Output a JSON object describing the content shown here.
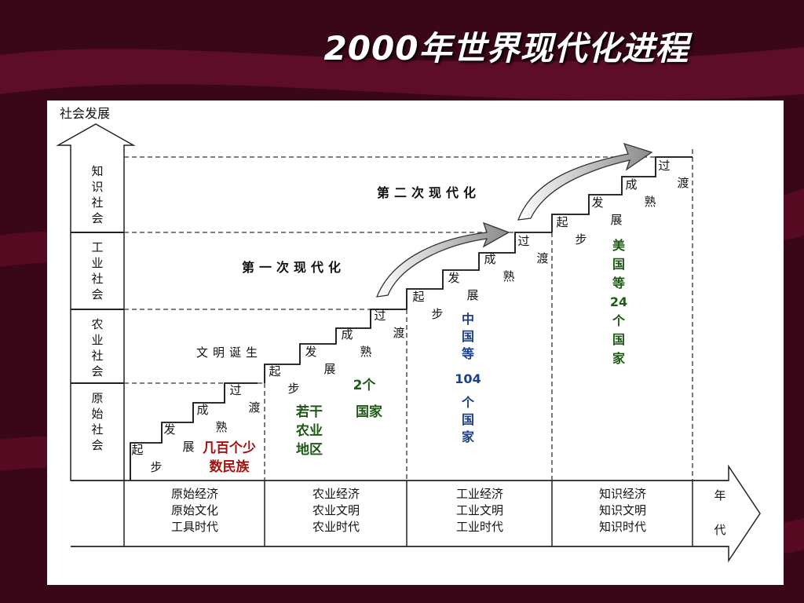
{
  "slide_title": "2000年世界现代化进程",
  "diagram": {
    "y_axis_label": "社会发展",
    "x_axis_label": [
      "年",
      "代"
    ],
    "levels": [
      {
        "id": "knowledge",
        "label": [
          "知",
          "识",
          "社",
          "会"
        ]
      },
      {
        "id": "industrial",
        "label": [
          "工",
          "业",
          "社",
          "会"
        ]
      },
      {
        "id": "agricultural",
        "label": [
          "农",
          "业",
          "社",
          "会"
        ]
      },
      {
        "id": "primitive",
        "label": [
          "原",
          "始",
          "社",
          "会"
        ]
      }
    ],
    "eras": [
      {
        "id": "primitive",
        "lines": [
          "原始经济",
          "原始文化",
          "工具时代"
        ]
      },
      {
        "id": "agricultural",
        "lines": [
          "农业经济",
          "农业文明",
          "农业时代"
        ]
      },
      {
        "id": "industrial",
        "lines": [
          "工业经济",
          "工业文明",
          "工业时代"
        ]
      },
      {
        "id": "knowledge",
        "lines": [
          "知识经济",
          "知识文明",
          "知识时代"
        ]
      }
    ],
    "stage_labels": {
      "start": [
        "起",
        "步"
      ],
      "develop": [
        "发",
        "展"
      ],
      "mature": [
        "成",
        "熟"
      ],
      "transition": [
        "过",
        "渡"
      ]
    },
    "annotations": {
      "civilization_birth": "文明诞生",
      "first_modernization": "第一次现代化",
      "second_modernization": "第二次现代化"
    },
    "groups": {
      "primitive": {
        "lines": [
          "几百个少",
          "数民族"
        ],
        "color": "#a3120f"
      },
      "agricultural_a": {
        "lines": [
          "若干",
          "农业",
          "地区"
        ],
        "color": "#1d5a14"
      },
      "agricultural_b": {
        "lines": [
          "2个",
          "国家"
        ],
        "color": "#1d5a14"
      },
      "industrial": {
        "lines": [
          "中",
          "国",
          "等",
          "104",
          "个",
          "国",
          "家"
        ],
        "color": "#1a3f8f"
      },
      "knowledge": {
        "lines": [
          "美",
          "国",
          "等",
          "24",
          "个",
          "国",
          "家"
        ],
        "color": "#1d5a14"
      }
    }
  }
}
